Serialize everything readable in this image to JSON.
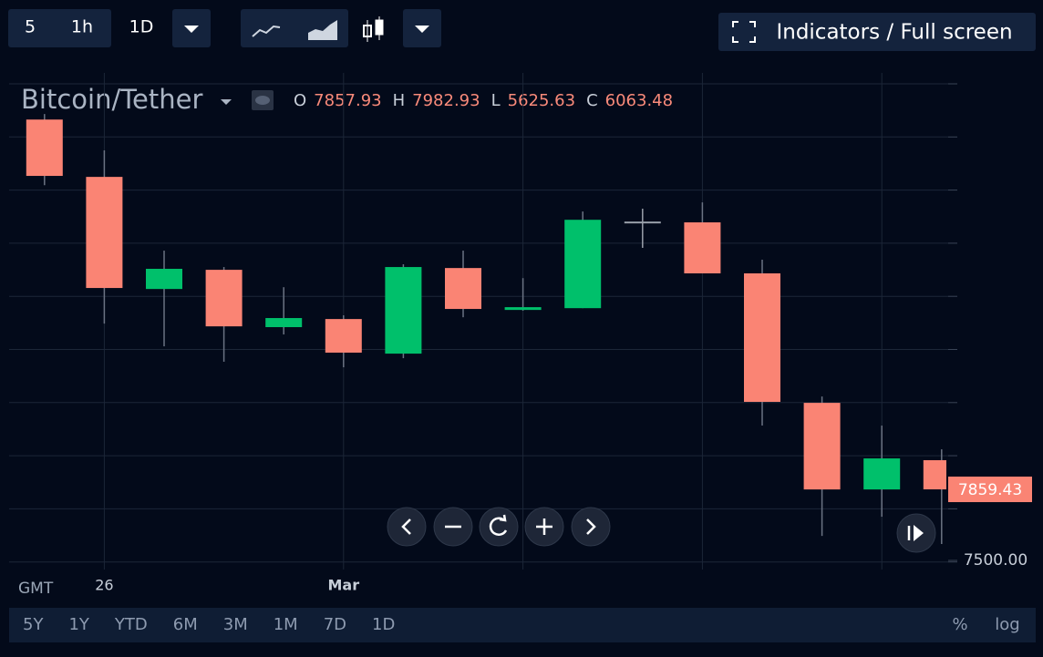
{
  "toolbar": {
    "intervals": [
      "5",
      "1h",
      "1D"
    ],
    "right_button": "Indicators / Full screen"
  },
  "legend": {
    "title": "Bitcoin/Tether",
    "items": [
      {
        "label": "O",
        "value": 7857.93
      },
      {
        "label": "H",
        "value": 7982.93
      },
      {
        "label": "L",
        "value": 5625.63
      },
      {
        "label": "C",
        "value": 6063.48
      }
    ]
  },
  "chart_data": {
    "type": "candlestick",
    "categories": [
      null,
      "26",
      null,
      null,
      null,
      "Mar",
      null,
      null,
      null,
      null,
      null,
      null,
      null,
      null,
      null,
      null
    ],
    "open": [
      9730,
      9440,
      8873,
      8970,
      8680,
      8721,
      8546,
      8979,
      8767,
      8776,
      9214,
      9210,
      8952,
      8297,
      7859,
      8007
    ],
    "high": [
      9758,
      9574,
      9067,
      8984,
      8882,
      8740,
      8998,
      9067,
      8928,
      9265,
      9279,
      9311,
      9021,
      8329,
      8182,
      8062
    ],
    "low": [
      9398,
      8698,
      8583,
      8505,
      8643,
      8477,
      8523,
      8730,
      8763,
      8776,
      9081,
      8952,
      8182,
      7624,
      7721,
      7583
    ],
    "close": [
      9445,
      8878,
      8975,
      8684,
      8726,
      8551,
      8984,
      8772,
      8781,
      9223,
      9214,
      8952,
      8302,
      7859,
      8016,
      7859.43
    ],
    "up_color": "#00c06b",
    "down_color": "#fa8474",
    "doji_color": "#9aa0aa",
    "ylim": [
      7454,
      9966
    ],
    "yticks": [
      {
        "value": 7500,
        "label": "7500.00"
      }
    ],
    "grid": true
  },
  "footer": {
    "timezone": "GMT",
    "ranges": [
      "5Y",
      "1Y",
      "YTD",
      "6M",
      "3M",
      "1M",
      "7D",
      "1D"
    ],
    "percent": "%",
    "log": "log"
  }
}
